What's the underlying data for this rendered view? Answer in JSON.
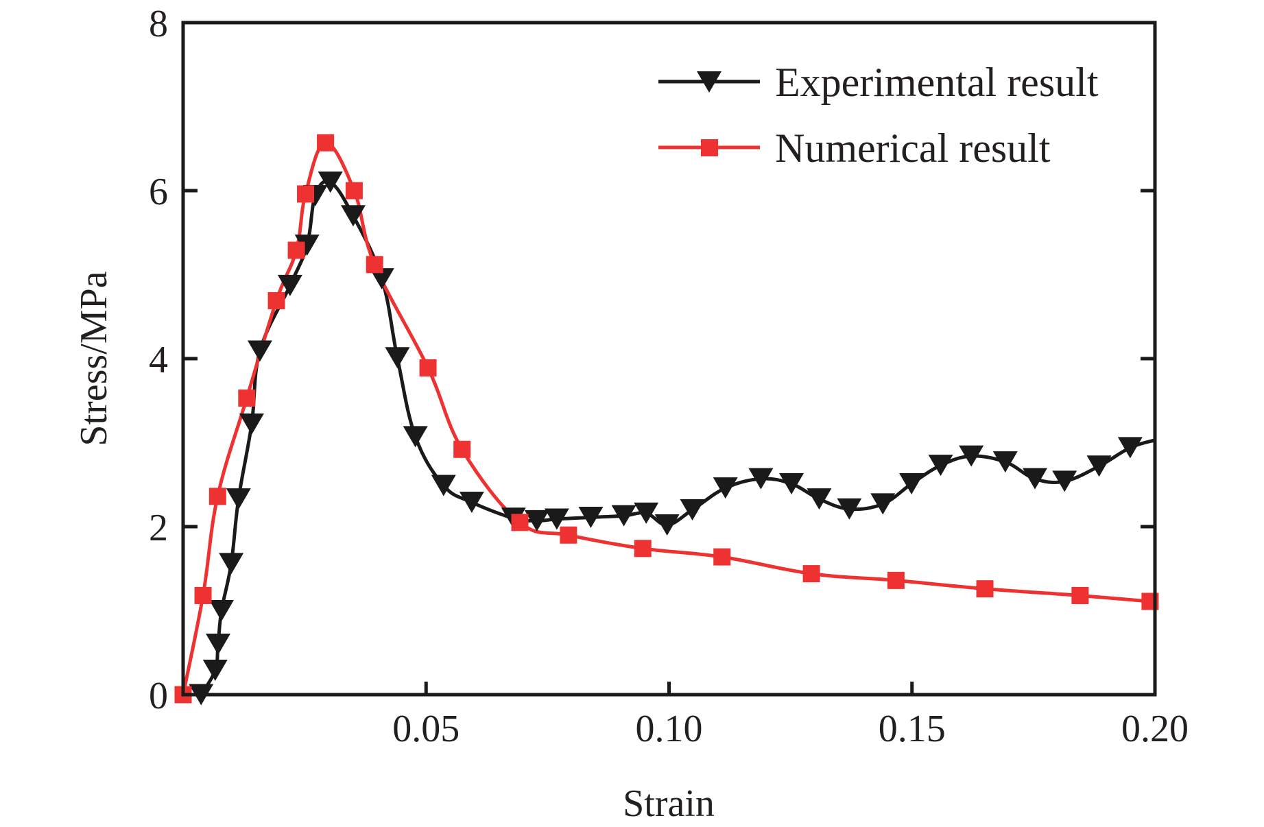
{
  "chart_data": {
    "type": "line",
    "title": "",
    "xlabel": "Strain",
    "ylabel": "Stress/MPa",
    "xlim": [
      0,
      0.2
    ],
    "ylim": [
      0,
      8
    ],
    "xticks": [
      0.05,
      0.1,
      0.15,
      0.2
    ],
    "xtick_labels": [
      "0.05",
      "0.10",
      "0.15",
      "0.20"
    ],
    "yticks": [
      0,
      2,
      4,
      6,
      8
    ],
    "ytick_labels": [
      "0",
      "2",
      "4",
      "6",
      "8"
    ],
    "grid": false,
    "legend_position": "top-right",
    "series": [
      {
        "name": "Experimental result",
        "color": "#1a1a1a",
        "marker": "triangle-down",
        "x": [
          0.0037,
          0.0066,
          0.0072,
          0.0079,
          0.0099,
          0.0114,
          0.0141,
          0.0158,
          0.022,
          0.0255,
          0.0272,
          0.0303,
          0.035,
          0.0409,
          0.0441,
          0.0478,
          0.0536,
          0.0594,
          0.068,
          0.0728,
          0.0769,
          0.0839,
          0.0907,
          0.0953,
          0.0996,
          0.1048,
          0.1116,
          0.1189,
          0.1252,
          0.1309,
          0.1371,
          0.144,
          0.1499,
          0.1559,
          0.1622,
          0.1692,
          0.1753,
          0.1814,
          0.1885,
          0.1949,
          0.2
        ],
        "y": [
          0.0,
          0.29,
          0.6,
          1.0,
          1.56,
          2.33,
          3.22,
          4.09,
          4.87,
          5.35,
          5.94,
          6.1,
          5.7,
          4.95,
          4.01,
          3.07,
          2.49,
          2.29,
          2.1,
          2.07,
          2.09,
          2.11,
          2.13,
          2.16,
          2.02,
          2.2,
          2.46,
          2.57,
          2.51,
          2.33,
          2.21,
          2.27,
          2.51,
          2.73,
          2.84,
          2.77,
          2.57,
          2.54,
          2.72,
          2.94,
          3.03
        ],
        "marker_mask": [
          1,
          1,
          1,
          1,
          1,
          1,
          1,
          1,
          1,
          1,
          1,
          1,
          1,
          1,
          1,
          1,
          1,
          1,
          1,
          1,
          1,
          1,
          1,
          1,
          1,
          1,
          1,
          1,
          1,
          1,
          1,
          1,
          1,
          1,
          1,
          1,
          1,
          1,
          1,
          1,
          0
        ]
      },
      {
        "name": "Numerical result",
        "color": "#ee3131",
        "marker": "square",
        "x": [
          0.0,
          0.0041,
          0.0071,
          0.0131,
          0.0192,
          0.0233,
          0.0252,
          0.0293,
          0.0352,
          0.0394,
          0.0504,
          0.0574,
          0.0693,
          0.0793,
          0.0946,
          0.1109,
          0.1293,
          0.1467,
          0.165,
          0.1846,
          0.199
        ],
        "y": [
          0.0,
          1.18,
          2.36,
          3.53,
          4.69,
          5.29,
          5.96,
          6.57,
          6.0,
          5.12,
          3.89,
          2.92,
          2.05,
          1.9,
          1.74,
          1.64,
          1.44,
          1.36,
          1.26,
          1.18,
          1.11
        ]
      }
    ]
  }
}
